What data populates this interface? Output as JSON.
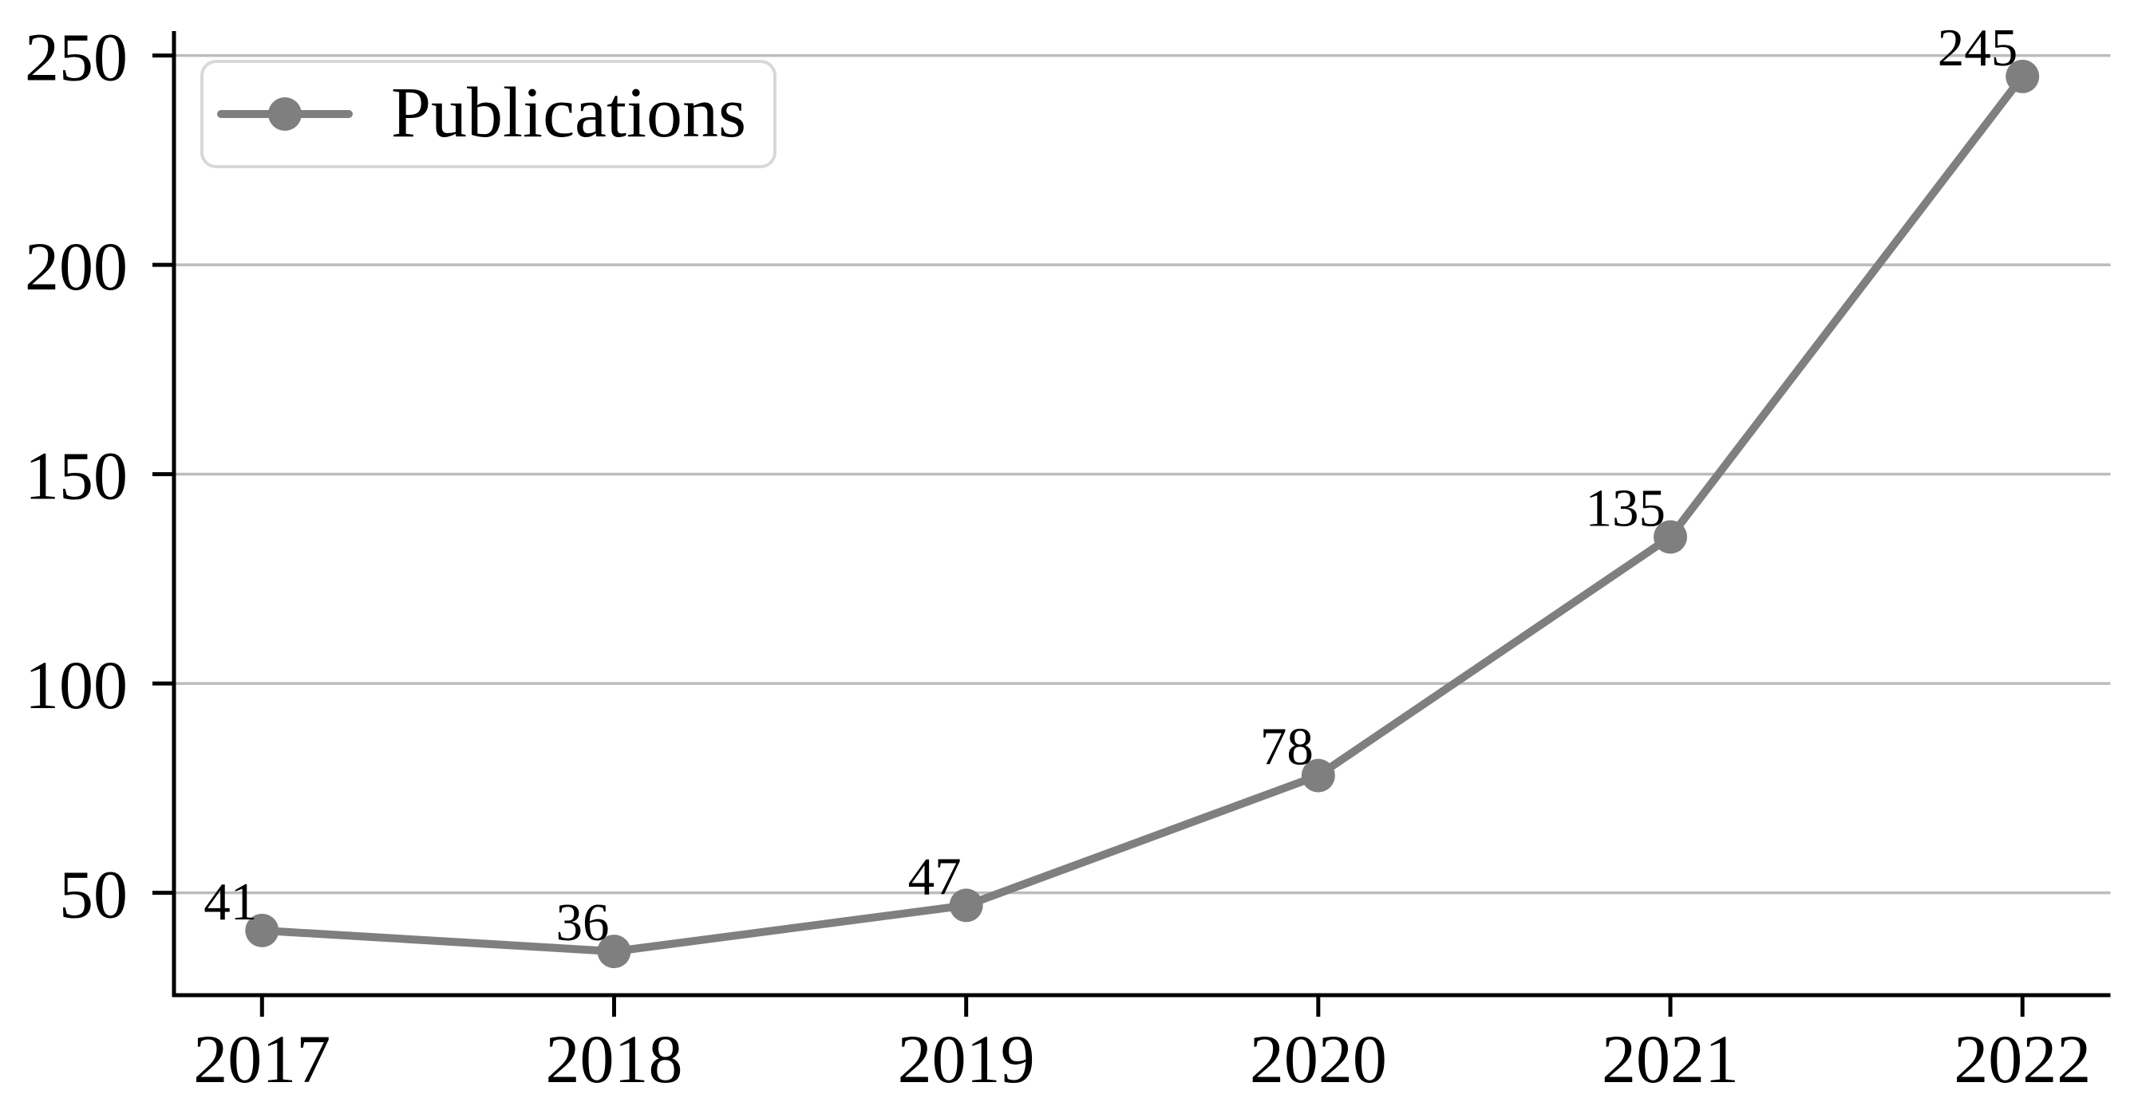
{
  "chart_data": {
    "type": "line",
    "x_categories": [
      "2017",
      "2018",
      "2019",
      "2020",
      "2021",
      "2022"
    ],
    "x_values": [
      2017,
      2018,
      2019,
      2020,
      2021,
      2022
    ],
    "series": [
      {
        "name": "Publications",
        "values": [
          41,
          36,
          47,
          78,
          135,
          245
        ]
      }
    ],
    "point_labels": [
      "41",
      "36",
      "47",
      "78",
      "135",
      "245"
    ],
    "yticks": [
      50,
      100,
      150,
      200,
      250
    ],
    "ytick_labels": [
      "50",
      "100",
      "150",
      "200",
      "250"
    ],
    "xlim": [
      2016.75,
      2022.25
    ],
    "ylim": [
      25.55,
      255.45
    ],
    "grid": "horizontal",
    "legend": {
      "position": "upper-left",
      "label": "Publications"
    },
    "colors": {
      "line": "#7f7f7f",
      "marker": "#7f7f7f",
      "grid": "#bcbcbc",
      "axis": "#000000",
      "text": "#000000",
      "legend_border": "#d8d8d8",
      "legend_background": "#ffffff",
      "background": "#ffffff"
    }
  }
}
